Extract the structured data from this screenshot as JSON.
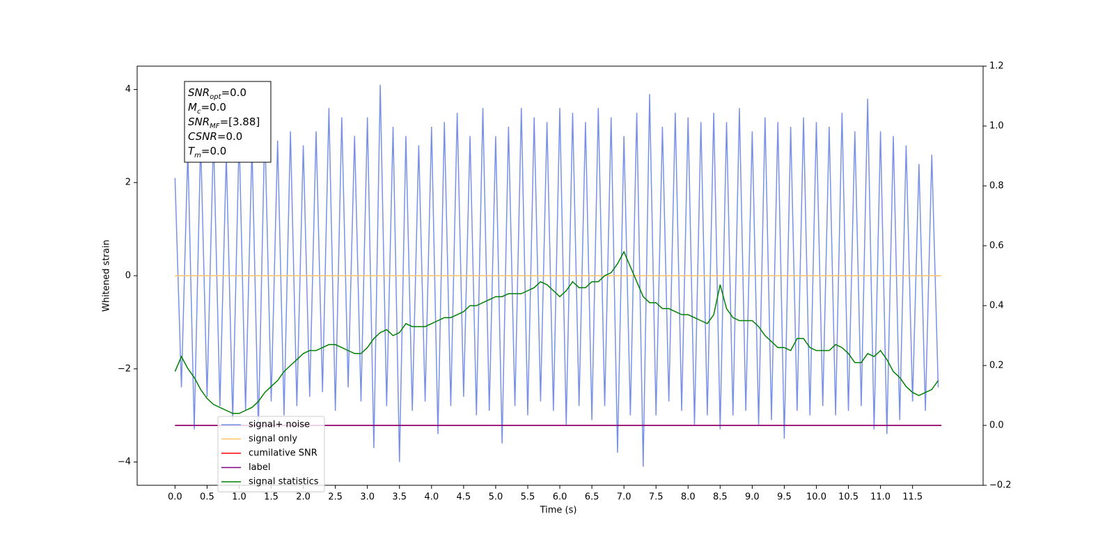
{
  "chart_data": {
    "type": "line",
    "xlabel": "Time (s)",
    "ylabel": "Whitened strain",
    "xlim": [
      -0.59,
      12.6
    ],
    "ylim": [
      -4.5,
      4.5
    ],
    "y2lim": [
      -0.2,
      1.2
    ],
    "xticks": [
      {
        "value": 0,
        "label": "0.0"
      },
      0.5,
      {
        "value": 1,
        "label": "1.0"
      },
      1.5,
      {
        "value": 2,
        "label": "2.0"
      },
      2.5,
      {
        "value": 3,
        "label": "3.0"
      },
      3.5,
      {
        "value": 4,
        "label": "4.0"
      },
      4.5,
      {
        "value": 5,
        "label": "5.0"
      },
      5.5,
      {
        "value": 6,
        "label": "6.0"
      },
      6.5,
      {
        "value": 7,
        "label": "7.0"
      },
      7.5,
      {
        "value": 8,
        "label": "8.0"
      },
      8.5,
      {
        "value": 9,
        "label": "9.0"
      },
      9.5,
      {
        "value": 10,
        "label": "10.0"
      },
      10.5,
      {
        "value": 11,
        "label": "11.0"
      },
      11.5
    ],
    "yticks": [
      {
        "value": -4,
        "label": "−4"
      },
      {
        "value": -2,
        "label": "−2"
      },
      0,
      2,
      4
    ],
    "y2ticks": [
      {
        "value": -0.2,
        "label": "−0.2"
      },
      {
        "value": 0,
        "label": "0.0"
      },
      0.2,
      0.4,
      0.6,
      0.8,
      {
        "value": 1,
        "label": "1.0"
      },
      1.2
    ],
    "grid": false,
    "legend": "lower left",
    "annotations": [
      {
        "main": "SNR",
        "sub": "opt",
        "value": "=0.0"
      },
      {
        "main": "M",
        "sub": "c",
        "value": "=0.0"
      },
      {
        "main": "SNR",
        "sub": "MF",
        "value": "=[3.88]"
      },
      {
        "main": "CSNR",
        "value": "=0.0"
      },
      {
        "main": "T",
        "sub": "m",
        "value": "=0.0"
      }
    ],
    "x": [
      0,
      0.1,
      0.2,
      0.3,
      0.4,
      0.5,
      0.6,
      0.7,
      0.8,
      0.9,
      1,
      1.1,
      1.2,
      1.3,
      1.4,
      1.5,
      1.6,
      1.7,
      1.8,
      1.9,
      2,
      2.1,
      2.2,
      2.3,
      2.4,
      2.5,
      2.6,
      2.7,
      2.8,
      2.9,
      3,
      3.1,
      3.2,
      3.3,
      3.4,
      3.5,
      3.6,
      3.7,
      3.8,
      3.9,
      4,
      4.1,
      4.2,
      4.3,
      4.4,
      4.5,
      4.6,
      4.7,
      4.8,
      4.9,
      5,
      5.1,
      5.2,
      5.3,
      5.4,
      5.5,
      5.6,
      5.7,
      5.8,
      5.9,
      6,
      6.1,
      6.2,
      6.3,
      6.4,
      6.5,
      6.6,
      6.7,
      6.8,
      6.9,
      7,
      7.1,
      7.2,
      7.3,
      7.4,
      7.5,
      7.6,
      7.7,
      7.8,
      7.9,
      8,
      8.1,
      8.2,
      8.3,
      8.4,
      8.5,
      8.6,
      8.7,
      8.8,
      8.9,
      9,
      9.1,
      9.2,
      9.3,
      9.4,
      9.5,
      9.6,
      9.7,
      9.8,
      9.9,
      10,
      10.1,
      10.2,
      10.3,
      10.4,
      10.5,
      10.6,
      10.7,
      10.8,
      10.9,
      11,
      11.1,
      11.2,
      11.3,
      11.4,
      11.5,
      11.6,
      11.7,
      11.8,
      11.9
    ],
    "series": [
      {
        "name": "signal+ noise",
        "color": "#7891e6",
        "axis": "y",
        "values": [
          2.1,
          -2.4,
          2.7,
          -3.3,
          2.9,
          -2.6,
          3.0,
          -2.8,
          2.6,
          -3.1,
          3.0,
          -2.9,
          2.8,
          -3.3,
          3.2,
          -2.7,
          2.9,
          -3.0,
          3.1,
          -2.8,
          2.8,
          -2.6,
          3.1,
          -2.5,
          3.6,
          -2.9,
          3.4,
          -2.4,
          3.0,
          -2.7,
          3.4,
          -3.7,
          4.1,
          -2.8,
          3.2,
          -4.0,
          3.0,
          -2.9,
          2.8,
          -2.7,
          3.2,
          -3.4,
          3.3,
          -2.8,
          3.5,
          -2.6,
          3.0,
          -3.0,
          3.6,
          -2.9,
          3.0,
          -3.6,
          3.2,
          -2.8,
          3.6,
          -3.0,
          3.4,
          -2.7,
          3.3,
          -2.9,
          3.6,
          -3.2,
          3.5,
          -2.8,
          3.3,
          -3.1,
          3.6,
          -2.8,
          3.4,
          -3.8,
          3.0,
          -3.0,
          3.5,
          -4.1,
          3.9,
          -3.0,
          3.2,
          -2.7,
          3.5,
          -2.9,
          3.4,
          -3.2,
          3.3,
          -3.0,
          3.5,
          -3.3,
          3.3,
          -3.0,
          3.6,
          -2.9,
          3.1,
          -3.2,
          3.4,
          -3.1,
          3.3,
          -3.5,
          3.2,
          -2.9,
          3.4,
          -3.0,
          3.3,
          -2.8,
          3.2,
          -3.0,
          3.5,
          -2.9,
          3.1,
          -2.8,
          3.8,
          -3.3,
          3.1,
          -3.4,
          3.0,
          -3.1,
          2.8,
          -2.7,
          2.4,
          -2.9,
          2.6,
          -2.4
        ]
      },
      {
        "name": "signal only",
        "color": "#ffc266",
        "axis": "y",
        "x": [
          0,
          11.95
        ],
        "values": [
          0,
          0
        ]
      },
      {
        "name": "cumilative SNR",
        "color": "#ff0000",
        "axis": "y2",
        "x": [
          0,
          11.95
        ],
        "values": [
          0,
          0
        ]
      },
      {
        "name": "label",
        "color": "#800080",
        "axis": "y2",
        "x": [
          0,
          11.95
        ],
        "values": [
          0,
          0
        ]
      },
      {
        "name": "signal statistics",
        "color": "#008000",
        "axis": "y2",
        "values": [
          0.18,
          0.23,
          0.19,
          0.16,
          0.12,
          0.09,
          0.07,
          0.06,
          0.05,
          0.04,
          0.04,
          0.05,
          0.06,
          0.08,
          0.11,
          0.13,
          0.15,
          0.18,
          0.2,
          0.22,
          0.24,
          0.25,
          0.25,
          0.26,
          0.27,
          0.27,
          0.26,
          0.25,
          0.24,
          0.24,
          0.26,
          0.29,
          0.31,
          0.32,
          0.3,
          0.31,
          0.34,
          0.33,
          0.33,
          0.33,
          0.34,
          0.35,
          0.36,
          0.36,
          0.37,
          0.38,
          0.4,
          0.4,
          0.41,
          0.42,
          0.43,
          0.43,
          0.44,
          0.44,
          0.44,
          0.45,
          0.46,
          0.48,
          0.47,
          0.45,
          0.43,
          0.45,
          0.48,
          0.46,
          0.46,
          0.48,
          0.48,
          0.5,
          0.51,
          0.54,
          0.58,
          0.53,
          0.48,
          0.43,
          0.41,
          0.41,
          0.39,
          0.39,
          0.38,
          0.37,
          0.37,
          0.36,
          0.35,
          0.34,
          0.37,
          0.47,
          0.39,
          0.36,
          0.35,
          0.35,
          0.35,
          0.33,
          0.3,
          0.28,
          0.26,
          0.26,
          0.25,
          0.29,
          0.29,
          0.26,
          0.25,
          0.25,
          0.25,
          0.27,
          0.26,
          0.24,
          0.21,
          0.21,
          0.24,
          0.23,
          0.25,
          0.22,
          0.18,
          0.16,
          0.13,
          0.11,
          0.1,
          0.11,
          0.12,
          0.15
        ]
      }
    ]
  }
}
